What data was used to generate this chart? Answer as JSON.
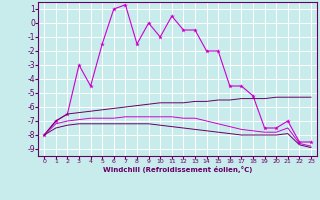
{
  "xlabel": "Windchill (Refroidissement éolien,°C)",
  "bg_color": "#c8ecec",
  "grid_color": "#ffffff",
  "line_color_main": "#cc00cc",
  "line_color_dark": "#660066",
  "ylim": [
    -9.5,
    1.5
  ],
  "xlim": [
    -0.5,
    23.5
  ],
  "yticks": [
    1,
    0,
    -1,
    -2,
    -3,
    -4,
    -5,
    -6,
    -7,
    -8,
    -9
  ],
  "xticks": [
    0,
    1,
    2,
    3,
    4,
    5,
    6,
    7,
    8,
    9,
    10,
    11,
    12,
    13,
    14,
    15,
    16,
    17,
    18,
    19,
    20,
    21,
    22,
    23
  ],
  "series1_x": [
    0,
    1,
    2,
    3,
    4,
    5,
    6,
    7,
    8,
    9,
    10,
    11,
    12,
    13,
    14,
    15,
    16,
    17,
    18,
    19,
    20,
    21,
    22,
    23
  ],
  "series1_y": [
    -8,
    -7,
    -6.5,
    -3,
    -4.5,
    -1.5,
    1,
    1.3,
    -1.5,
    0,
    -1,
    0.5,
    -0.5,
    -0.5,
    -2,
    -2,
    -4.5,
    -4.5,
    -5.2,
    -7.5,
    -7.5,
    -7,
    -8.5,
    -8.5
  ],
  "series2_x": [
    0,
    1,
    2,
    3,
    4,
    5,
    6,
    7,
    8,
    9,
    10,
    11,
    12,
    13,
    14,
    15,
    16,
    17,
    18,
    19,
    20,
    21,
    22,
    23
  ],
  "series2_y": [
    -8,
    -7,
    -6.5,
    -6.4,
    -6.3,
    -6.2,
    -6.1,
    -6.0,
    -5.9,
    -5.8,
    -5.7,
    -5.7,
    -5.7,
    -5.6,
    -5.6,
    -5.5,
    -5.5,
    -5.4,
    -5.4,
    -5.4,
    -5.3,
    -5.3,
    -5.3,
    -5.3
  ],
  "series3_x": [
    0,
    1,
    2,
    3,
    4,
    5,
    6,
    7,
    8,
    9,
    10,
    11,
    12,
    13,
    14,
    15,
    16,
    17,
    18,
    19,
    20,
    21,
    22,
    23
  ],
  "series3_y": [
    -8,
    -7.2,
    -7.0,
    -6.9,
    -6.8,
    -6.8,
    -6.8,
    -6.7,
    -6.7,
    -6.7,
    -6.7,
    -6.7,
    -6.8,
    -6.8,
    -7.0,
    -7.2,
    -7.4,
    -7.6,
    -7.7,
    -7.8,
    -7.8,
    -7.5,
    -8.6,
    -8.8
  ],
  "series4_x": [
    0,
    1,
    2,
    3,
    4,
    5,
    6,
    7,
    8,
    9,
    10,
    11,
    12,
    13,
    14,
    15,
    16,
    17,
    18,
    19,
    20,
    21,
    22,
    23
  ],
  "series4_y": [
    -8,
    -7.5,
    -7.3,
    -7.2,
    -7.2,
    -7.2,
    -7.2,
    -7.2,
    -7.2,
    -7.2,
    -7.3,
    -7.4,
    -7.5,
    -7.6,
    -7.7,
    -7.8,
    -7.9,
    -8.0,
    -8.0,
    -8.0,
    -8.0,
    -7.9,
    -8.7,
    -8.9
  ]
}
